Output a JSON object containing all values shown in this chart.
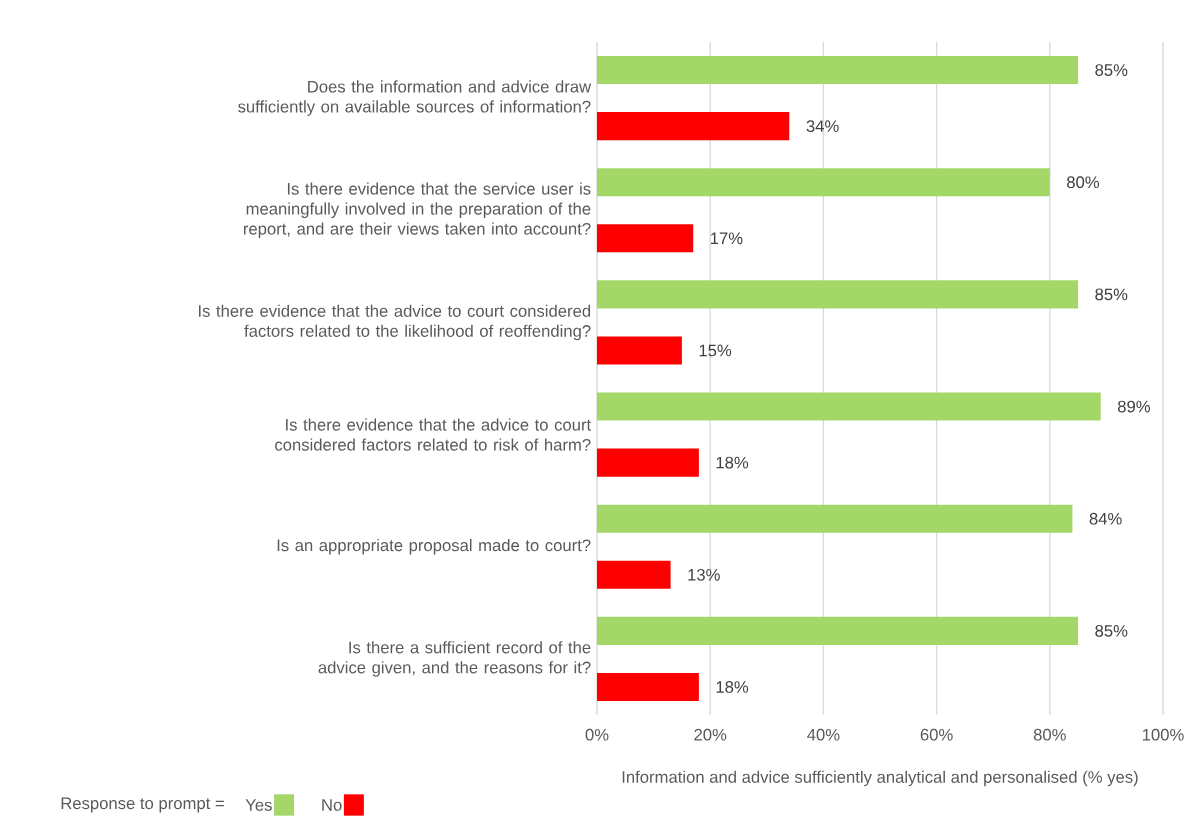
{
  "chart_data": {
    "type": "bar",
    "orientation": "horizontal",
    "categories": [
      "Does the information and advice draw sufficiently on available sources of information?",
      "Is there evidence that the service user is meaningfully involved in the preparation of the report, and are their views taken into account?",
      "Is there evidence that the advice to court considered factors related to the likelihood of reoffending?",
      "Is there evidence that the advice to court considered factors related to risk of harm?",
      "Is an appropriate proposal made to court?",
      "Is there a sufficient record of the advice given, and the reasons for it?"
    ],
    "xlabel": "Information and advice sufficiently analytical and personalised (% yes)",
    "legend_title": "Response to prompt =",
    "legend": "bottom",
    "grid": "x",
    "xlim": [
      0,
      100
    ],
    "xticks": [
      {
        "value": 0,
        "label": "0%"
      },
      {
        "value": 20,
        "label": "20%"
      },
      {
        "value": 40,
        "label": "40%"
      },
      {
        "value": 60,
        "label": "60%"
      },
      {
        "value": 80,
        "label": "80%"
      },
      {
        "value": 100,
        "label": "100%"
      }
    ],
    "series": [
      {
        "name": "Yes",
        "color": "#a3d869",
        "values": [
          85,
          80,
          85,
          89,
          84,
          85
        ],
        "value_labels": [
          "85%",
          "80%",
          "85%",
          "89%",
          "84%",
          "85%"
        ]
      },
      {
        "name": "No",
        "color": "#ff0000",
        "values": [
          34,
          17,
          15,
          18,
          13,
          18
        ],
        "value_labels": [
          "34%",
          "17%",
          "15%",
          "18%",
          "13%",
          "18%"
        ]
      }
    ]
  }
}
